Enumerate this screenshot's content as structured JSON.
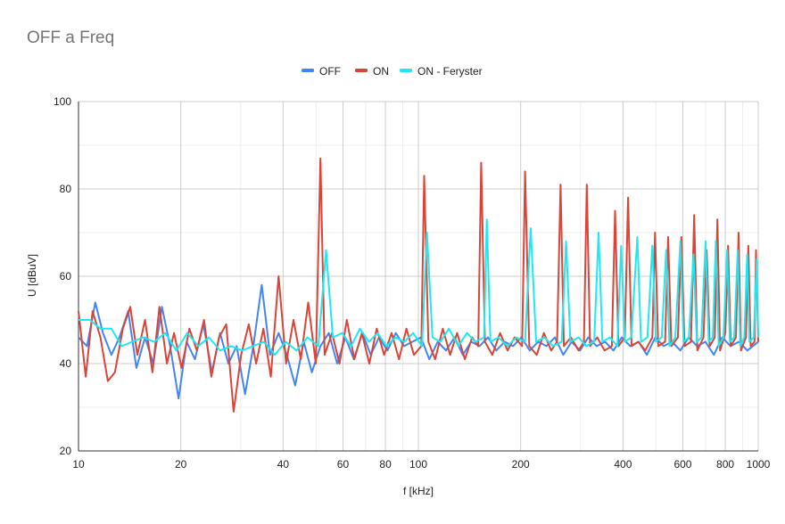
{
  "chart_data": {
    "type": "line",
    "title": "OFF a Freq",
    "xlabel": "f [kHz]",
    "ylabel": "U [dBuV]",
    "x_scale": "log",
    "xlim": [
      10,
      1000
    ],
    "ylim": [
      20,
      100
    ],
    "x_ticks": [
      10,
      20,
      40,
      60,
      80,
      100,
      200,
      400,
      600,
      800,
      1000
    ],
    "y_ticks": [
      20,
      40,
      60,
      80,
      100
    ],
    "grid": true,
    "legend_position": "top-center",
    "series": [
      {
        "name": "OFF",
        "color": "#4285f4",
        "points": [
          [
            10,
            46
          ],
          [
            10.6,
            44
          ],
          [
            11.2,
            54
          ],
          [
            11.8,
            47
          ],
          [
            12.5,
            42
          ],
          [
            13.2,
            46
          ],
          [
            14,
            52
          ],
          [
            14.8,
            39
          ],
          [
            15.7,
            46
          ],
          [
            16.6,
            40
          ],
          [
            17.6,
            53
          ],
          [
            18.6,
            44
          ],
          [
            19.7,
            32
          ],
          [
            20.8,
            45
          ],
          [
            22,
            41
          ],
          [
            23.3,
            49
          ],
          [
            24.7,
            38
          ],
          [
            26.1,
            47
          ],
          [
            27.6,
            40
          ],
          [
            29.2,
            44
          ],
          [
            30.9,
            33
          ],
          [
            32.7,
            44
          ],
          [
            34.6,
            58
          ],
          [
            36.6,
            42
          ],
          [
            38.8,
            47
          ],
          [
            41,
            42
          ],
          [
            43.4,
            35
          ],
          [
            46,
            45
          ],
          [
            48.6,
            38
          ],
          [
            51.5,
            44
          ],
          [
            54.5,
            47
          ],
          [
            57.7,
            40
          ],
          [
            61,
            46
          ],
          [
            64.6,
            41
          ],
          [
            68.4,
            47
          ],
          [
            72.4,
            42
          ],
          [
            76.6,
            46
          ],
          [
            81.1,
            43
          ],
          [
            85.8,
            47
          ],
          [
            90.8,
            44
          ],
          [
            96.1,
            45
          ],
          [
            101.7,
            46
          ],
          [
            107.7,
            41
          ],
          [
            114,
            45
          ],
          [
            120.6,
            43
          ],
          [
            127.7,
            46
          ],
          [
            135.1,
            42
          ],
          [
            143,
            45
          ],
          [
            151.4,
            44
          ],
          [
            160.2,
            46
          ],
          [
            169.5,
            43
          ],
          [
            179.4,
            45
          ],
          [
            189.9,
            44
          ],
          [
            201,
            46
          ],
          [
            212.7,
            43
          ],
          [
            225.1,
            45
          ],
          [
            238.2,
            44
          ],
          [
            252.1,
            46
          ],
          [
            266.8,
            42
          ],
          [
            282.4,
            45
          ],
          [
            298.9,
            43
          ],
          [
            316.3,
            46
          ],
          [
            334.8,
            44
          ],
          [
            354.3,
            45
          ],
          [
            375,
            43
          ],
          [
            396.8,
            46
          ],
          [
            420,
            44
          ],
          [
            444.5,
            45
          ],
          [
            470.4,
            42
          ],
          [
            497.8,
            46
          ],
          [
            526.9,
            44
          ],
          [
            557.6,
            45
          ],
          [
            590.1,
            43
          ],
          [
            624.5,
            46
          ],
          [
            660.9,
            44
          ],
          [
            699.5,
            45
          ],
          [
            740.3,
            42
          ],
          [
            783.5,
            46
          ],
          [
            829.1,
            44
          ],
          [
            877.5,
            45
          ],
          [
            928.7,
            43
          ],
          [
            1000,
            45
          ]
        ]
      },
      {
        "name": "ON",
        "color": "#db4437",
        "points": [
          [
            10,
            52
          ],
          [
            10.5,
            37
          ],
          [
            11,
            52
          ],
          [
            11.6,
            46
          ],
          [
            12.2,
            36
          ],
          [
            12.8,
            38
          ],
          [
            13.5,
            48
          ],
          [
            14.2,
            53
          ],
          [
            14.9,
            42
          ],
          [
            15.7,
            50
          ],
          [
            16.5,
            38
          ],
          [
            17.3,
            53
          ],
          [
            18.2,
            40
          ],
          [
            19.1,
            47
          ],
          [
            20.1,
            39
          ],
          [
            21.2,
            48
          ],
          [
            22.3,
            43
          ],
          [
            23.4,
            50
          ],
          [
            24.6,
            37
          ],
          [
            25.9,
            46
          ],
          [
            27.2,
            49
          ],
          [
            28.6,
            29
          ],
          [
            30.1,
            42
          ],
          [
            31.7,
            49
          ],
          [
            33.3,
            40
          ],
          [
            35,
            48
          ],
          [
            36.8,
            37
          ],
          [
            38.8,
            60
          ],
          [
            40.8,
            40
          ],
          [
            42.9,
            50
          ],
          [
            45.1,
            41
          ],
          [
            47.4,
            54
          ],
          [
            49.9,
            40
          ],
          [
            51.5,
            87
          ],
          [
            53,
            42
          ],
          [
            55.7,
            47
          ],
          [
            58.6,
            40
          ],
          [
            61.6,
            50
          ],
          [
            64.8,
            41
          ],
          [
            68.2,
            47
          ],
          [
            71.7,
            40
          ],
          [
            75.4,
            48
          ],
          [
            79.3,
            42
          ],
          [
            83.4,
            47
          ],
          [
            87.7,
            41
          ],
          [
            92.2,
            48
          ],
          [
            97,
            42
          ],
          [
            102,
            44
          ],
          [
            104,
            83
          ],
          [
            107,
            45
          ],
          [
            112,
            41
          ],
          [
            118,
            48
          ],
          [
            124,
            42
          ],
          [
            130,
            47
          ],
          [
            137,
            41
          ],
          [
            144,
            46
          ],
          [
            150,
            44
          ],
          [
            153,
            86
          ],
          [
            157,
            45
          ],
          [
            165,
            42
          ],
          [
            174,
            47
          ],
          [
            183,
            43
          ],
          [
            192,
            46
          ],
          [
            202,
            44
          ],
          [
            206,
            84
          ],
          [
            212,
            44
          ],
          [
            223,
            42
          ],
          [
            234,
            47
          ],
          [
            246,
            43
          ],
          [
            256,
            45
          ],
          [
            262,
            81
          ],
          [
            268,
            44
          ],
          [
            281,
            46
          ],
          [
            296,
            43
          ],
          [
            307,
            45
          ],
          [
            313,
            81
          ],
          [
            320,
            44
          ],
          [
            336,
            46
          ],
          [
            353,
            43
          ],
          [
            371,
            44
          ],
          [
            379,
            75
          ],
          [
            388,
            44
          ],
          [
            405,
            46
          ],
          [
            414,
            78
          ],
          [
            424,
            44
          ],
          [
            444,
            45
          ],
          [
            465,
            43
          ],
          [
            488,
            46
          ],
          [
            497,
            70
          ],
          [
            508,
            44
          ],
          [
            532,
            45
          ],
          [
            543,
            69
          ],
          [
            555,
            44
          ],
          [
            580,
            46
          ],
          [
            594,
            69
          ],
          [
            607,
            44
          ],
          [
            634,
            45
          ],
          [
            648,
            74
          ],
          [
            662,
            43
          ],
          [
            690,
            46
          ],
          [
            705,
            66
          ],
          [
            720,
            44
          ],
          [
            745,
            46
          ],
          [
            758,
            73
          ],
          [
            772,
            43
          ],
          [
            800,
            47
          ],
          [
            815,
            67
          ],
          [
            830,
            44
          ],
          [
            860,
            46
          ],
          [
            875,
            70
          ],
          [
            890,
            43
          ],
          [
            920,
            46
          ],
          [
            935,
            67
          ],
          [
            950,
            44
          ],
          [
            975,
            45
          ],
          [
            985,
            66
          ],
          [
            1000,
            45
          ]
        ]
      },
      {
        "name": "ON - Feryster",
        "color": "#1de9f2",
        "points": [
          [
            10,
            50
          ],
          [
            10.8,
            50
          ],
          [
            11.6,
            48
          ],
          [
            12.5,
            48
          ],
          [
            13.4,
            44
          ],
          [
            14.4,
            45
          ],
          [
            15.5,
            46
          ],
          [
            16.7,
            45
          ],
          [
            18,
            47
          ],
          [
            19.4,
            43
          ],
          [
            20.9,
            47
          ],
          [
            22.5,
            44
          ],
          [
            24.2,
            46
          ],
          [
            26.1,
            43
          ],
          [
            28.1,
            44
          ],
          [
            30.3,
            43
          ],
          [
            32.6,
            44
          ],
          [
            35.1,
            45
          ],
          [
            37.8,
            42
          ],
          [
            40.7,
            45
          ],
          [
            43.8,
            43
          ],
          [
            47.2,
            46
          ],
          [
            50.8,
            44
          ],
          [
            53.5,
            66
          ],
          [
            56,
            46
          ],
          [
            59.7,
            47
          ],
          [
            63.4,
            44
          ],
          [
            67.3,
            48
          ],
          [
            71.5,
            45
          ],
          [
            75.9,
            47
          ],
          [
            80.6,
            44
          ],
          [
            85.6,
            46
          ],
          [
            90.9,
            45
          ],
          [
            96.5,
            47
          ],
          [
            102.5,
            44
          ],
          [
            106,
            70
          ],
          [
            110,
            46
          ],
          [
            116,
            45
          ],
          [
            123,
            48
          ],
          [
            131,
            44
          ],
          [
            139,
            47
          ],
          [
            147,
            45
          ],
          [
            156,
            46
          ],
          [
            159,
            73
          ],
          [
            163,
            45
          ],
          [
            172,
            46
          ],
          [
            183,
            44
          ],
          [
            194,
            46
          ],
          [
            206,
            45
          ],
          [
            214,
            71
          ],
          [
            222,
            45
          ],
          [
            235,
            46
          ],
          [
            249,
            44
          ],
          [
            264,
            45
          ],
          [
            272,
            68
          ],
          [
            280,
            45
          ],
          [
            296,
            46
          ],
          [
            312,
            44
          ],
          [
            329,
            45
          ],
          [
            339,
            70
          ],
          [
            348,
            45
          ],
          [
            366,
            46
          ],
          [
            385,
            44
          ],
          [
            395,
            67
          ],
          [
            405,
            45
          ],
          [
            423,
            46
          ],
          [
            441,
            69
          ],
          [
            452,
            45
          ],
          [
            472,
            46
          ],
          [
            488,
            67
          ],
          [
            500,
            45
          ],
          [
            520,
            46
          ],
          [
            536,
            66
          ],
          [
            548,
            44
          ],
          [
            570,
            46
          ],
          [
            590,
            68
          ],
          [
            603,
            45
          ],
          [
            625,
            46
          ],
          [
            645,
            65
          ],
          [
            660,
            45
          ],
          [
            680,
            46
          ],
          [
            700,
            68
          ],
          [
            715,
            45
          ],
          [
            735,
            46
          ],
          [
            750,
            68
          ],
          [
            765,
            44
          ],
          [
            790,
            46
          ],
          [
            810,
            66
          ],
          [
            825,
            45
          ],
          [
            850,
            46
          ],
          [
            870,
            66
          ],
          [
            885,
            44
          ],
          [
            910,
            46
          ],
          [
            928,
            65
          ],
          [
            942,
            45
          ],
          [
            970,
            46
          ],
          [
            990,
            64
          ],
          [
            1000,
            46
          ]
        ]
      }
    ]
  }
}
